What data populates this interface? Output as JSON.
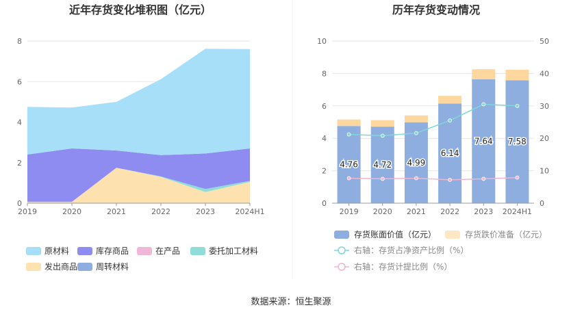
{
  "source": "数据来源：恒生聚源",
  "colors": {
    "raw_materials": "#a7dff8",
    "finished_goods": "#8e8cf0",
    "wip": "#f0b8d8",
    "outsourced": "#8fdcd8",
    "shipped": "#fde2b0",
    "revolving": "#8daedf",
    "bar_book": "#8eaedf",
    "bar_provision": "#fdd79d",
    "line_ratio": "#7fd7d7",
    "line_provision": "#f0b5d3",
    "grid": "#e6e6e6",
    "axis_text": "#666666"
  },
  "chart_data": [
    {
      "type": "area",
      "stacked": true,
      "title": "近年存货变化堆积图（亿元）",
      "categories": [
        "2019",
        "2020",
        "2021",
        "2022",
        "2023",
        "2024H1"
      ],
      "yticks": [
        "0",
        "2",
        "4",
        "6",
        "8"
      ],
      "ylim": [
        0,
        8
      ],
      "grid": true,
      "legend_position": "bottom",
      "series": [
        {
          "name": "发出商品",
          "key": "shipped",
          "values": [
            0.05,
            0.05,
            1.75,
            1.3,
            0.55,
            1.05
          ]
        },
        {
          "name": "委托加工材料",
          "key": "outsourced",
          "values": [
            0.0,
            0.0,
            0.0,
            0.02,
            0.15,
            0.05
          ]
        },
        {
          "name": "在产品",
          "key": "wip",
          "values": [
            0.02,
            0.02,
            0.0,
            0.0,
            0.0,
            0.0
          ]
        },
        {
          "name": "周转材料",
          "key": "revolving",
          "values": [
            0.0,
            0.0,
            0.0,
            0.0,
            0.0,
            0.0
          ]
        },
        {
          "name": "库存商品",
          "key": "finished_goods",
          "values": [
            2.33,
            2.63,
            0.85,
            1.05,
            1.75,
            1.6
          ]
        },
        {
          "name": "原材料",
          "key": "raw_materials",
          "values": [
            2.35,
            2.02,
            2.4,
            3.75,
            5.17,
            4.9
          ]
        }
      ],
      "legend": [
        {
          "name": "原材料",
          "key": "raw_materials"
        },
        {
          "name": "库存商品",
          "key": "finished_goods"
        },
        {
          "name": "在产品",
          "key": "wip"
        },
        {
          "name": "委托加工材料",
          "key": "outsourced"
        },
        {
          "name": "发出商品",
          "key": "shipped"
        },
        {
          "name": "周转材料",
          "key": "revolving"
        }
      ]
    },
    {
      "type": "bar",
      "stacked": true,
      "title": "历年存货变动情况",
      "categories": [
        "2019",
        "2020",
        "2021",
        "2022",
        "2023",
        "2024H1"
      ],
      "yticks_left": [
        "0",
        "2",
        "4",
        "6",
        "8",
        "10"
      ],
      "ylim_left": [
        0,
        10
      ],
      "yticks_right": [
        "0",
        "10",
        "20",
        "30",
        "40",
        "50"
      ],
      "ylim_right": [
        0,
        50
      ],
      "grid": true,
      "legend_position": "bottom",
      "series": [
        {
          "name": "存货账面价值（亿元）",
          "key": "bar_book",
          "axis": "left",
          "values": [
            4.76,
            4.72,
            4.99,
            6.14,
            7.64,
            7.58
          ],
          "labels": [
            "4.76",
            "4.72",
            "4.99",
            "6.14",
            "7.64",
            "7.58"
          ]
        },
        {
          "name": "存货跌价准备（亿元）",
          "key": "bar_provision",
          "axis": "left",
          "values": [
            0.4,
            0.4,
            0.42,
            0.48,
            0.62,
            0.65
          ]
        },
        {
          "name": "右轴：存货占净资产比例（%）",
          "key": "line_ratio",
          "axis": "right",
          "values": [
            21.2,
            20.8,
            21.6,
            25.5,
            30.5,
            30.0
          ]
        },
        {
          "name": "右轴：存货计提比例（%）",
          "key": "line_provision",
          "axis": "right",
          "values": [
            7.7,
            7.5,
            7.7,
            7.2,
            7.5,
            7.9
          ]
        }
      ]
    }
  ]
}
